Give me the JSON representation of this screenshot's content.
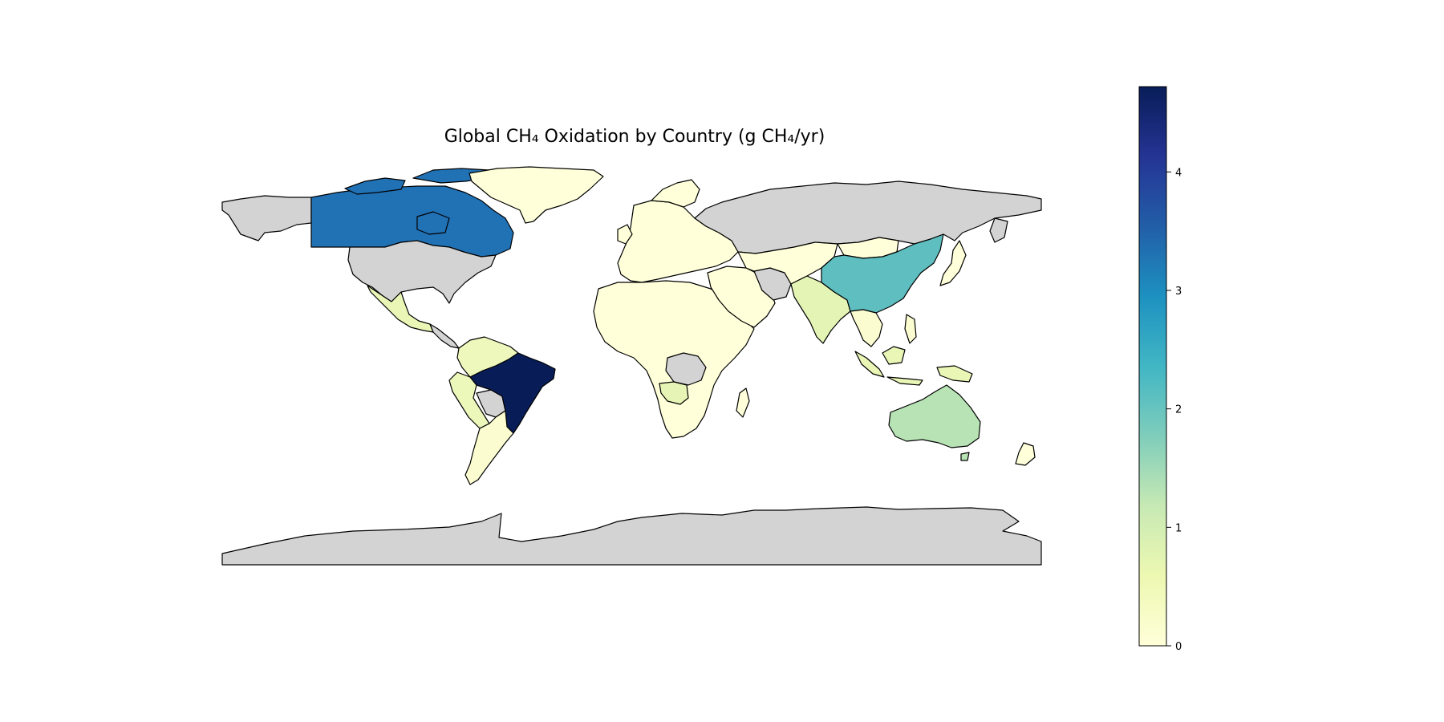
{
  "title": "Global CH₄ Oxidation by Country (g CH₄/yr)",
  "colorbar": {
    "colormap": "YlGnBu",
    "range": [
      0,
      4.72
    ],
    "ticks": [
      {
        "value": 0,
        "label": "0"
      },
      {
        "value": 1,
        "label": "1"
      },
      {
        "value": 2,
        "label": "2"
      },
      {
        "value": 3,
        "label": "3"
      },
      {
        "value": 4,
        "label": "4"
      }
    ]
  },
  "colors": {
    "missing_data": "#d3d3d3",
    "border": "#000000",
    "background": "#ffffff"
  },
  "regions": [
    {
      "id": "brazil",
      "value": 4.72,
      "color": "#081d58"
    },
    {
      "id": "canada",
      "value": 3.25,
      "color": "#2171b5"
    },
    {
      "id": "china",
      "value": 1.95,
      "color": "#5fbec0"
    },
    {
      "id": "australia",
      "value": 1.2,
      "color": "#b8e3b5"
    },
    {
      "id": "india",
      "value": 0.6,
      "color": "#e3f4b4"
    },
    {
      "id": "mexico",
      "value": 0.5,
      "color": "#e9f6b6"
    },
    {
      "id": "angola",
      "value": 0.55,
      "color": "#e6f5b5"
    },
    {
      "id": "colombia",
      "value": 0.4,
      "color": "#eef8bc"
    },
    {
      "id": "peru",
      "value": 0.45,
      "color": "#ecf7ba"
    },
    {
      "id": "indonesia",
      "value": 0.5,
      "color": "#e9f6b6"
    },
    {
      "id": "greenland",
      "value": 0.05,
      "color": "#ffffd9"
    },
    {
      "id": "russia",
      "value": null,
      "color": "#d3d3d3"
    },
    {
      "id": "usa",
      "value": null,
      "color": "#d3d3d3"
    },
    {
      "id": "alaska",
      "value": null,
      "color": "#d3d3d3"
    },
    {
      "id": "antarctica",
      "value": null,
      "color": "#d3d3d3"
    },
    {
      "id": "iran",
      "value": null,
      "color": "#d3d3d3"
    },
    {
      "id": "drc",
      "value": null,
      "color": "#d3d3d3"
    },
    {
      "id": "bolivia",
      "value": null,
      "color": "#d3d3d3"
    },
    {
      "id": "africa",
      "value": 0.05,
      "color": "#ffffd9"
    },
    {
      "id": "europe",
      "value": 0.05,
      "color": "#ffffd9"
    },
    {
      "id": "middle-east",
      "value": 0.05,
      "color": "#ffffd9"
    },
    {
      "id": "central-asia",
      "value": 0.05,
      "color": "#ffffd9"
    },
    {
      "id": "mongolia",
      "value": 0.05,
      "color": "#ffffd9"
    },
    {
      "id": "southeast-asia",
      "value": 0.1,
      "color": "#fbfdd0"
    },
    {
      "id": "argentina-chile",
      "value": 0.1,
      "color": "#fbfdd0"
    },
    {
      "id": "japan",
      "value": 0.05,
      "color": "#ffffd9"
    },
    {
      "id": "new-zealand",
      "value": 0.05,
      "color": "#ffffd9"
    },
    {
      "id": "madagascar",
      "value": 0.05,
      "color": "#ffffd9"
    }
  ]
}
